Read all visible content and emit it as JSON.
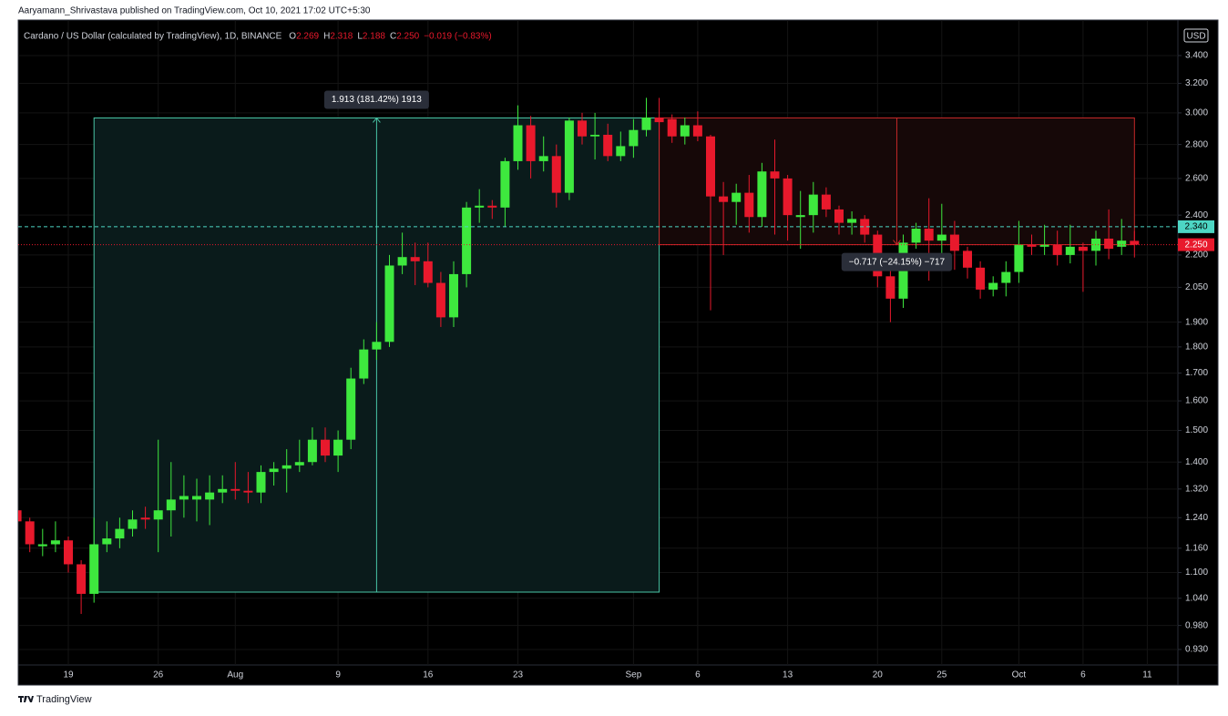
{
  "chart_data": {
    "type": "candlestick",
    "source": "Aaryamann_Shrivastava published on TradingView.com, Oct 10, 2021 17:02 UTC+5:30",
    "symbol": "Cardano / US Dollar (calculated by TradingView), 1D, BINANCE",
    "legend": {
      "keys": [
        "O",
        "H",
        "L",
        "C"
      ],
      "values": [
        "2.269",
        "2.318",
        "2.188",
        "2.250"
      ],
      "change": "−0.019 (−0.83%)"
    },
    "currency": "USD",
    "footer": "TradingView",
    "log_scale": true,
    "grid": true,
    "up_color": "#3ee83e",
    "down_color": "#e8192c",
    "categories": [
      null,
      null,
      null,
      null,
      "19",
      null,
      null,
      null,
      null,
      null,
      null,
      "26",
      null,
      null,
      null,
      null,
      null,
      "Aug",
      null,
      null,
      null,
      null,
      null,
      null,
      null,
      "9",
      null,
      null,
      null,
      null,
      null,
      null,
      "16",
      null,
      null,
      null,
      null,
      null,
      null,
      "23",
      null,
      null,
      null,
      null,
      null,
      null,
      null,
      null,
      "Sep",
      null,
      null,
      null,
      null,
      "6",
      null,
      null,
      null,
      null,
      null,
      null,
      "13",
      null,
      null,
      null,
      null,
      null,
      null,
      "20",
      null,
      null,
      null,
      null,
      "25",
      null,
      null,
      null,
      null,
      null,
      "Oct",
      null,
      null,
      null,
      null,
      "6",
      null,
      null,
      null,
      null,
      "11"
    ],
    "open": [
      1.26,
      1.23,
      1.165,
      1.17,
      1.18,
      1.12,
      1.05,
      1.17,
      1.185,
      1.21,
      1.24,
      1.235,
      1.26,
      1.29,
      1.29,
      1.29,
      1.31,
      1.32,
      1.315,
      1.31,
      1.37,
      1.38,
      1.39,
      1.4,
      1.47,
      1.42,
      1.47,
      1.68,
      1.79,
      1.82,
      2.15,
      2.19,
      2.17,
      2.07,
      1.92,
      2.11,
      2.44,
      2.45,
      2.44,
      2.7,
      2.92,
      2.7,
      2.73,
      2.52,
      2.95,
      2.85,
      2.86,
      2.73,
      2.79,
      2.89,
      2.97,
      2.96,
      2.85,
      2.92,
      2.85,
      2.5,
      2.47,
      2.52,
      2.39,
      2.64,
      2.6,
      2.39,
      2.4,
      2.51,
      2.43,
      2.36,
      2.38,
      2.3,
      2.1,
      2.0,
      2.26,
      2.33,
      2.27,
      2.3,
      2.22,
      2.14,
      2.04,
      2.07,
      2.12,
      2.25,
      2.24,
      2.25,
      2.2,
      2.24,
      2.22,
      2.28,
      2.24,
      2.269,
      null
    ],
    "high": [
      1.28,
      1.24,
      1.21,
      1.23,
      1.19,
      1.13,
      1.24,
      1.23,
      1.24,
      1.26,
      1.27,
      1.47,
      1.4,
      1.36,
      1.35,
      1.36,
      1.36,
      1.4,
      1.37,
      1.39,
      1.4,
      1.44,
      1.47,
      1.51,
      1.51,
      1.5,
      1.72,
      1.83,
      1.9,
      2.2,
      2.31,
      2.26,
      2.26,
      2.12,
      2.17,
      2.47,
      2.54,
      2.48,
      2.72,
      3.05,
      2.98,
      2.85,
      2.8,
      2.97,
      3.0,
      3.0,
      2.93,
      2.88,
      2.96,
      3.1,
      3.1,
      2.99,
      2.97,
      3.01,
      2.86,
      2.58,
      2.57,
      2.62,
      2.69,
      2.83,
      2.62,
      2.53,
      2.58,
      2.55,
      2.45,
      2.42,
      2.4,
      2.32,
      2.14,
      2.3,
      2.36,
      2.49,
      2.46,
      2.37,
      2.24,
      2.17,
      2.1,
      2.17,
      2.37,
      2.3,
      2.35,
      2.32,
      2.35,
      2.26,
      2.32,
      2.43,
      2.38,
      2.318,
      null
    ],
    "low": [
      1.21,
      1.15,
      1.14,
      1.15,
      1.1,
      1.005,
      1.03,
      1.15,
      1.16,
      1.19,
      1.21,
      1.15,
      1.19,
      1.24,
      1.23,
      1.22,
      1.28,
      1.29,
      1.28,
      1.28,
      1.33,
      1.31,
      1.37,
      1.39,
      1.4,
      1.37,
      1.44,
      1.66,
      1.75,
      1.8,
      2.11,
      2.06,
      2.05,
      1.88,
      1.88,
      2.05,
      2.36,
      2.38,
      2.34,
      2.65,
      2.6,
      2.64,
      2.44,
      2.48,
      2.8,
      2.71,
      2.7,
      2.7,
      2.72,
      2.85,
      2.83,
      2.81,
      2.8,
      2.82,
      1.95,
      2.2,
      2.35,
      2.31,
      2.34,
      2.3,
      2.27,
      2.23,
      2.31,
      2.39,
      2.3,
      2.3,
      2.26,
      2.05,
      1.9,
      1.96,
      2.23,
      2.08,
      2.2,
      2.13,
      2.09,
      2.0,
      2.01,
      2.01,
      2.07,
      2.2,
      2.2,
      2.15,
      2.16,
      2.03,
      2.15,
      2.18,
      2.2,
      2.188,
      null
    ],
    "close": [
      1.23,
      1.17,
      1.17,
      1.18,
      1.12,
      1.05,
      1.17,
      1.185,
      1.21,
      1.235,
      1.235,
      1.26,
      1.29,
      1.3,
      1.3,
      1.31,
      1.32,
      1.315,
      1.31,
      1.37,
      1.38,
      1.39,
      1.4,
      1.47,
      1.42,
      1.47,
      1.68,
      1.79,
      1.82,
      2.15,
      2.19,
      2.17,
      2.07,
      1.92,
      2.11,
      2.44,
      2.45,
      2.44,
      2.7,
      2.92,
      2.7,
      2.73,
      2.52,
      2.95,
      2.85,
      2.86,
      2.73,
      2.79,
      2.89,
      2.97,
      2.94,
      2.85,
      2.92,
      2.85,
      2.5,
      2.47,
      2.52,
      2.39,
      2.64,
      2.6,
      2.4,
      2.4,
      2.51,
      2.43,
      2.36,
      2.38,
      2.3,
      2.1,
      2.0,
      2.26,
      2.33,
      2.27,
      2.3,
      2.22,
      2.14,
      2.04,
      2.07,
      2.12,
      2.25,
      2.24,
      2.25,
      2.2,
      2.24,
      2.22,
      2.28,
      2.23,
      2.27,
      2.25,
      null
    ],
    "ylim": [
      0.899,
      3.674
    ],
    "yticks": [
      {
        "value": 0.93,
        "label": "0.930"
      },
      {
        "value": 0.98,
        "label": "0.980"
      },
      {
        "value": 1.04,
        "label": "1.040"
      },
      {
        "value": 1.1,
        "label": "1.100"
      },
      {
        "value": 1.16,
        "label": "1.160"
      },
      {
        "value": 1.24,
        "label": "1.240"
      },
      {
        "value": 1.32,
        "label": "1.320"
      },
      {
        "value": 1.4,
        "label": "1.400"
      },
      {
        "value": 1.5,
        "label": "1.500"
      },
      {
        "value": 1.6,
        "label": "1.600"
      },
      {
        "value": 1.7,
        "label": "1.700"
      },
      {
        "value": 1.8,
        "label": "1.800"
      },
      {
        "value": 1.9,
        "label": "1.900"
      },
      {
        "value": 2.05,
        "label": "2.050"
      },
      {
        "value": 2.2,
        "label": "2.200"
      },
      {
        "value": 2.4,
        "label": "2.400"
      },
      {
        "value": 2.6,
        "label": "2.600"
      },
      {
        "value": 2.8,
        "label": "2.800"
      },
      {
        "value": 3,
        "label": "3.000"
      },
      {
        "value": 3.2,
        "label": "3.200"
      },
      {
        "value": 3.4,
        "label": "3.400"
      }
    ],
    "hlines": [
      {
        "value": 2.34,
        "label": "2.340",
        "color": "#4dd6c4",
        "text_color": "#000000",
        "dash": "4 3"
      },
      {
        "value": 2.25,
        "label": "2.250",
        "color": "#e8192c",
        "text_color": "#ffffff",
        "dash": "1 2"
      }
    ],
    "measures": [
      {
        "label": "1.913 (181.42%) 1913",
        "from": 1.054,
        "to": 2.967,
        "start": 6,
        "end": 50,
        "line": "#49c6a6",
        "fill": "#0a1b1b"
      },
      {
        "label": "−0.717 (−24.15%) −717",
        "from": 2.967,
        "to": 2.25,
        "start": 50,
        "end": 87,
        "line": "#c62828",
        "fill": "#160808"
      }
    ]
  }
}
